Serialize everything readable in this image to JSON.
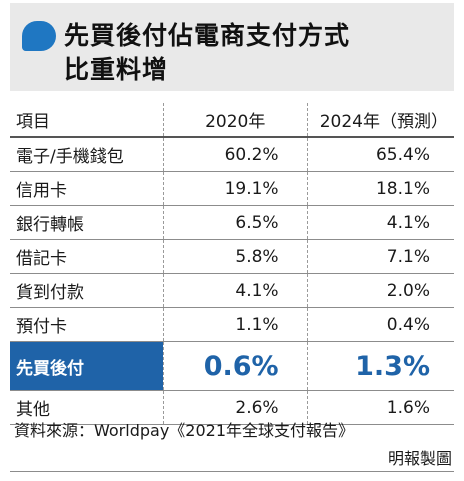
{
  "title": {
    "line1": "先買後付佔電商支付方式",
    "line2": "比重料增"
  },
  "table": {
    "headers": [
      "項目",
      "2020年",
      "2024年（預測）"
    ],
    "rows": [
      {
        "item": "電子/手機錢包",
        "v2020": "60.2%",
        "v2024": "65.4%"
      },
      {
        "item": "信用卡",
        "v2020": "19.1%",
        "v2024": "18.1%"
      },
      {
        "item": "銀行轉帳",
        "v2020": "6.5%",
        "v2024": "4.1%"
      },
      {
        "item": "借記卡",
        "v2020": "5.8%",
        "v2024": "7.1%"
      },
      {
        "item": "貨到付款",
        "v2020": "4.1%",
        "v2024": "2.0%"
      },
      {
        "item": "預付卡",
        "v2020": "1.1%",
        "v2024": "0.4%"
      },
      {
        "item": "先買後付",
        "v2020": "0.6%",
        "v2024": "1.3%"
      },
      {
        "item": "其他",
        "v2020": "2.6%",
        "v2024": "1.6%"
      }
    ]
  },
  "source": "資料來源：Worldpay《2021年全球支付報告》",
  "credit": "明報製圖",
  "colors": {
    "accent": "#1f63a8",
    "title_bg": "#e9e9e9"
  }
}
